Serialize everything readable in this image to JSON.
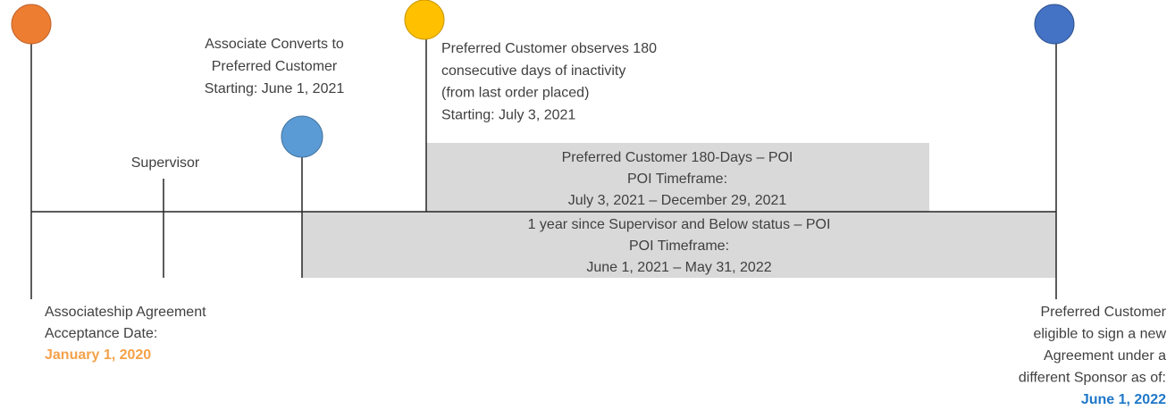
{
  "events": [
    {
      "lines": [
        "Associate Converts to",
        "Preferred Customer",
        "Starting: June 1, 2021"
      ]
    },
    {
      "lines": [
        "Preferred Customer observes 180",
        "consecutive days of inactivity",
        "(from last order placed)",
        "Starting: July 3, 2021"
      ]
    },
    {
      "lines": [
        "Supervisor"
      ]
    }
  ],
  "periods": [
    {
      "lines": [
        "Preferred Customer 180-Days – POI",
        "POI Timeframe:",
        "July 3, 2021 – December 29, 2021"
      ]
    },
    {
      "lines": [
        "1 year since Supervisor and Below status – POI",
        "POI Timeframe:",
        "June 1, 2021 – May 31, 2022"
      ]
    }
  ],
  "start": {
    "lines": [
      "Associateship Agreement",
      "Acceptance Date:"
    ],
    "date": "January 1, 2020"
  },
  "end": {
    "lines": [
      "Preferred Customer",
      "eligible to sign a new",
      "Agreement under a",
      "different Sponsor as of:"
    ],
    "date": "June 1, 2022"
  }
}
